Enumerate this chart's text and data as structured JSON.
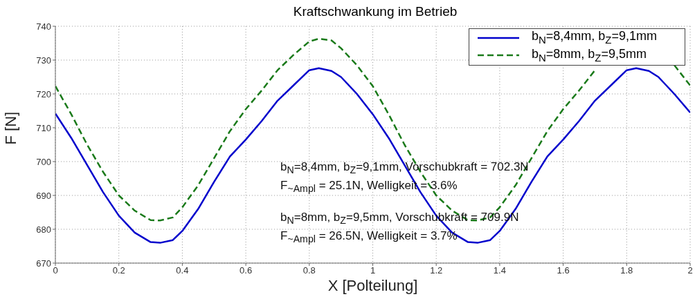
{
  "chart_data": {
    "type": "line",
    "title": "Kraftschwankung im Betrieb",
    "xlabel": "X [Polteilung]",
    "ylabel": "F [N]",
    "xlim": [
      0,
      2
    ],
    "xticks": [
      0,
      0.2,
      0.4,
      0.6,
      0.8,
      1,
      1.2,
      1.4,
      1.6,
      1.8,
      2
    ],
    "ylim": [
      670,
      740
    ],
    "yticks": [
      670,
      680,
      690,
      700,
      710,
      720,
      730,
      740
    ],
    "grid": true,
    "legend": "top right",
    "series": [
      {
        "name": "b$_{N}$=8,4mm, b$_{Z}$=9,1mm",
        "color": "#0000cc",
        "line_style": "solid",
        "x": [
          0,
          0.05,
          0.1,
          0.15,
          0.2,
          0.25,
          0.3,
          0.33,
          0.37,
          0.4,
          0.45,
          0.5,
          0.55,
          0.6,
          0.65,
          0.7,
          0.75,
          0.8,
          0.83,
          0.87,
          0.9,
          0.95,
          1,
          1.05,
          1.1,
          1.15,
          1.2,
          1.25,
          1.3,
          1.33,
          1.37,
          1.4,
          1.45,
          1.5,
          1.55,
          1.6,
          1.65,
          1.7,
          1.75,
          1.8,
          1.83,
          1.87,
          1.9,
          1.95,
          2
        ],
        "values": [
          714.2,
          707,
          699,
          691,
          684,
          679,
          676.2,
          676,
          676.8,
          679.5,
          686,
          694,
          701.5,
          706.5,
          712,
          718,
          722.5,
          727,
          727.6,
          726.8,
          725,
          720,
          714,
          707,
          699,
          691,
          684,
          679,
          676.2,
          676,
          676.8,
          679.5,
          686,
          694,
          701.5,
          706.5,
          712,
          718,
          722.5,
          727,
          727.6,
          726.8,
          725,
          720,
          714.5
        ]
      },
      {
        "name": "b$_{N}$=8mm, b$_{Z}$=9,5mm",
        "color": "#1a7a1a",
        "line_style": "dashed",
        "x": [
          0,
          0.05,
          0.1,
          0.15,
          0.2,
          0.25,
          0.3,
          0.33,
          0.37,
          0.4,
          0.45,
          0.5,
          0.55,
          0.6,
          0.65,
          0.7,
          0.75,
          0.8,
          0.83,
          0.87,
          0.9,
          0.95,
          1,
          1.05,
          1.1,
          1.15,
          1.2,
          1.25,
          1.3,
          1.33,
          1.37,
          1.4,
          1.45,
          1.5,
          1.55,
          1.6,
          1.65,
          1.7,
          1.75,
          1.8,
          1.83,
          1.87,
          1.9,
          1.95,
          2
        ],
        "values": [
          722.3,
          714,
          705,
          697,
          690,
          685.5,
          682.7,
          682.6,
          683.5,
          686.5,
          693,
          701,
          709,
          715.5,
          721,
          727,
          731.5,
          735.5,
          736.3,
          735.8,
          733.5,
          728.5,
          722.3,
          714,
          705,
          697,
          690,
          685.5,
          682.7,
          682.6,
          683.5,
          686.5,
          693,
          701,
          709,
          715.5,
          721,
          727,
          null,
          null,
          null,
          null,
          null,
          728.5,
          722.5
        ]
      }
    ],
    "annotations": [
      "b$_{N}$=8,4mm, b$_{Z}$=9,1mm, Vorschubkraft = 702.3N",
      "F$_{~Ampl}$ = 25.1N, Welligkeit = 3.6%",
      "b$_{N}$=8mm, b$_{Z}$=9,5mm, Vorschubkraft = 709.9N",
      "F$_{~Ampl}$ = 26.5N, Welligkeit = 3.7%"
    ]
  }
}
